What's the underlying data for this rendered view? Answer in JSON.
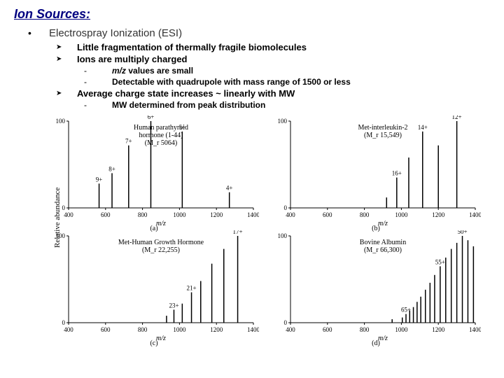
{
  "title": "Ion Sources:",
  "subtitle": "Electrospray Ionization (ESI)",
  "bullets": {
    "b1": "Little fragmentation of thermally fragile biomolecules",
    "b2": "Ions are multiply charged",
    "b2a": "values are small",
    "b2a_prefix": "m/z",
    "b2b": "Detectable with quadrupole with mass range of 1500 or less",
    "b3": "Average charge state increases ~ linearly with MW",
    "b3a": "MW determined from peak distribution"
  },
  "ylabel": "Relative abundance",
  "charts": {
    "a": {
      "title1": "Human parathyroid",
      "title2": "hormone (1-44)",
      "title3": "(M_r 5064)",
      "xlabel": "m/z",
      "panel": "(a)",
      "xlim": [
        400,
        1400
      ],
      "xticks": [
        400,
        600,
        800,
        1000,
        1200,
        1400
      ],
      "ylim": [
        0,
        100
      ],
      "yticks": [
        0,
        100
      ],
      "peaks": [
        {
          "x": 565,
          "h": 28,
          "label": "9+"
        },
        {
          "x": 635,
          "h": 40,
          "label": "8+"
        },
        {
          "x": 725,
          "h": 72,
          "label": "7+"
        },
        {
          "x": 845,
          "h": 100,
          "label": "6+"
        },
        {
          "x": 1015,
          "h": 88,
          "label": "5+"
        },
        {
          "x": 1270,
          "h": 18,
          "label": "4+"
        }
      ],
      "colors": {
        "line": "#000000",
        "bg": "#ffffff"
      }
    },
    "b": {
      "title1": "Met-interleukin-2",
      "title2": "(M_r 15,549)",
      "xlabel": "m/z",
      "panel": "(b)",
      "xlim": [
        400,
        1400
      ],
      "xticks": [
        400,
        600,
        800,
        1000,
        1200,
        1400
      ],
      "ylim": [
        0,
        100
      ],
      "yticks": [
        0,
        100
      ],
      "peaks": [
        {
          "x": 920,
          "h": 12,
          "label": ""
        },
        {
          "x": 975,
          "h": 35,
          "label": "16+"
        },
        {
          "x": 1040,
          "h": 58,
          "label": ""
        },
        {
          "x": 1115,
          "h": 88,
          "label": "14+"
        },
        {
          "x": 1200,
          "h": 72,
          "label": ""
        },
        {
          "x": 1300,
          "h": 100,
          "label": "12+"
        }
      ],
      "colors": {
        "line": "#000000",
        "bg": "#ffffff"
      }
    },
    "c": {
      "title1": "Met-Human Growth Hormone",
      "title2": "(M_r 22,255)",
      "xlabel": "m/z",
      "panel": "(c)",
      "xlim": [
        400,
        1400
      ],
      "xticks": [
        400,
        600,
        800,
        1000,
        1200,
        1400
      ],
      "ylim": [
        0,
        100
      ],
      "yticks": [
        0,
        100
      ],
      "peaks": [
        {
          "x": 930,
          "h": 8,
          "label": ""
        },
        {
          "x": 970,
          "h": 15,
          "label": "23+"
        },
        {
          "x": 1015,
          "h": 22,
          "label": ""
        },
        {
          "x": 1065,
          "h": 35,
          "label": "21+"
        },
        {
          "x": 1115,
          "h": 48,
          "label": ""
        },
        {
          "x": 1175,
          "h": 68,
          "label": ""
        },
        {
          "x": 1240,
          "h": 85,
          "label": ""
        },
        {
          "x": 1315,
          "h": 100,
          "label": "17+"
        }
      ],
      "colors": {
        "line": "#000000",
        "bg": "#ffffff"
      }
    },
    "d": {
      "title1": "Bovine Albumin",
      "title2": "(M_r 66,300)",
      "xlabel": "m/z",
      "panel": "(d)",
      "xlim": [
        400,
        1400
      ],
      "xticks": [
        400,
        600,
        800,
        1000,
        1200,
        1400
      ],
      "ylim": [
        0,
        100
      ],
      "yticks": [
        0,
        100
      ],
      "peaks": [
        {
          "x": 950,
          "h": 4,
          "label": ""
        },
        {
          "x": 1005,
          "h": 6,
          "label": ""
        },
        {
          "x": 1025,
          "h": 10,
          "label": "65+"
        },
        {
          "x": 1045,
          "h": 14,
          "label": ""
        },
        {
          "x": 1065,
          "h": 18,
          "label": ""
        },
        {
          "x": 1085,
          "h": 24,
          "label": ""
        },
        {
          "x": 1105,
          "h": 30,
          "label": ""
        },
        {
          "x": 1130,
          "h": 38,
          "label": ""
        },
        {
          "x": 1155,
          "h": 46,
          "label": ""
        },
        {
          "x": 1180,
          "h": 55,
          "label": ""
        },
        {
          "x": 1210,
          "h": 65,
          "label": "55+"
        },
        {
          "x": 1240,
          "h": 75,
          "label": ""
        },
        {
          "x": 1270,
          "h": 85,
          "label": ""
        },
        {
          "x": 1300,
          "h": 92,
          "label": ""
        },
        {
          "x": 1330,
          "h": 100,
          "label": "50+"
        },
        {
          "x": 1360,
          "h": 95,
          "label": ""
        },
        {
          "x": 1390,
          "h": 88,
          "label": ""
        }
      ],
      "colors": {
        "line": "#000000",
        "bg": "#ffffff"
      }
    }
  }
}
